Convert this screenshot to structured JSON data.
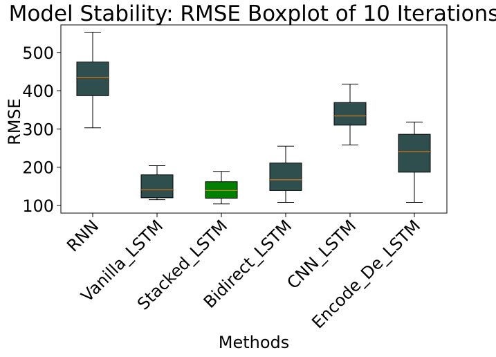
{
  "chart_data": {
    "type": "boxplot",
    "title": "Model Stability: RMSE Boxplot of 10 Iterations",
    "xlabel": "Methods",
    "ylabel": "RMSE",
    "ylim": [
      80,
      572
    ],
    "yticks": [
      100,
      200,
      300,
      400,
      500
    ],
    "categories": [
      "RNN",
      "Vanilla_LSTM",
      "Stacked_LSTM",
      "Bidirect_LSTM",
      "CNN_LSTM",
      "Encode_De_LSTM"
    ],
    "boxes": [
      {
        "category": "RNN",
        "whisker_low": 303,
        "q1": 387,
        "median": 434,
        "q3": 475,
        "whisker_high": 553,
        "color": "#2f4f4f"
      },
      {
        "category": "Vanilla_LSTM",
        "whisker_low": 115,
        "q1": 120,
        "median": 141,
        "q3": 180,
        "whisker_high": 204,
        "color": "#2f4f4f"
      },
      {
        "category": "Stacked_LSTM",
        "whisker_low": 104,
        "q1": 119,
        "median": 139,
        "q3": 162,
        "whisker_high": 189,
        "color": "#008000"
      },
      {
        "category": "Bidirect_LSTM",
        "whisker_low": 108,
        "q1": 139,
        "median": 167,
        "q3": 211,
        "whisker_high": 255,
        "color": "#2f4f4f"
      },
      {
        "category": "CNN_LSTM",
        "whisker_low": 258,
        "q1": 310,
        "median": 334,
        "q3": 369,
        "whisker_high": 417,
        "color": "#2f4f4f"
      },
      {
        "category": "Encode_De_LSTM",
        "whisker_low": 108,
        "q1": 187,
        "median": 240,
        "q3": 286,
        "whisker_high": 318,
        "color": "#2f4f4f"
      }
    ],
    "median_color": "#ff7f0e",
    "grid": false,
    "legend": "none"
  }
}
